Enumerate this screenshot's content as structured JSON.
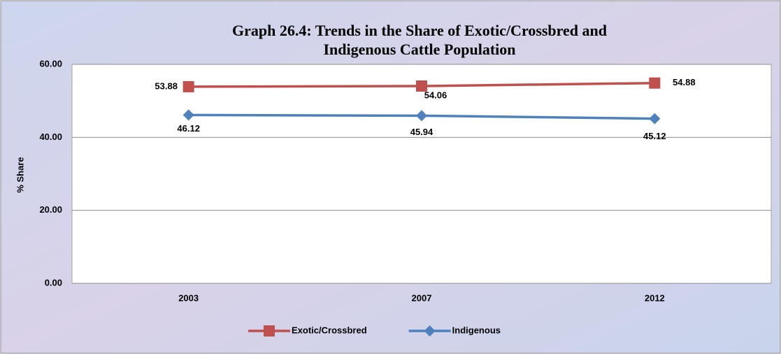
{
  "chart_data": {
    "type": "line",
    "title": "Graph  26.4: Trends in the Share of Exotic/Crossbred  and",
    "subtitle": "Indigenous  Cattle Population",
    "y_label": "% Share",
    "categories": [
      "2003",
      "2007",
      "2012"
    ],
    "series": [
      {
        "name": "Exotic/Crossbred",
        "color": "#c0504d",
        "marker": "square",
        "values": [
          53.88,
          54.06,
          54.88
        ]
      },
      {
        "name": "Indigenous",
        "color": "#4f81bd",
        "marker": "diamond",
        "values": [
          46.12,
          45.94,
          45.12
        ]
      }
    ],
    "ylim": [
      0,
      60
    ],
    "yticks": [
      {
        "value": 0,
        "label": "0.00"
      },
      {
        "value": 20,
        "label": "20.00"
      },
      {
        "value": 40,
        "label": "40.00"
      },
      {
        "value": 60,
        "label": "60.00"
      }
    ],
    "grid": true,
    "legend": "bottom"
  }
}
